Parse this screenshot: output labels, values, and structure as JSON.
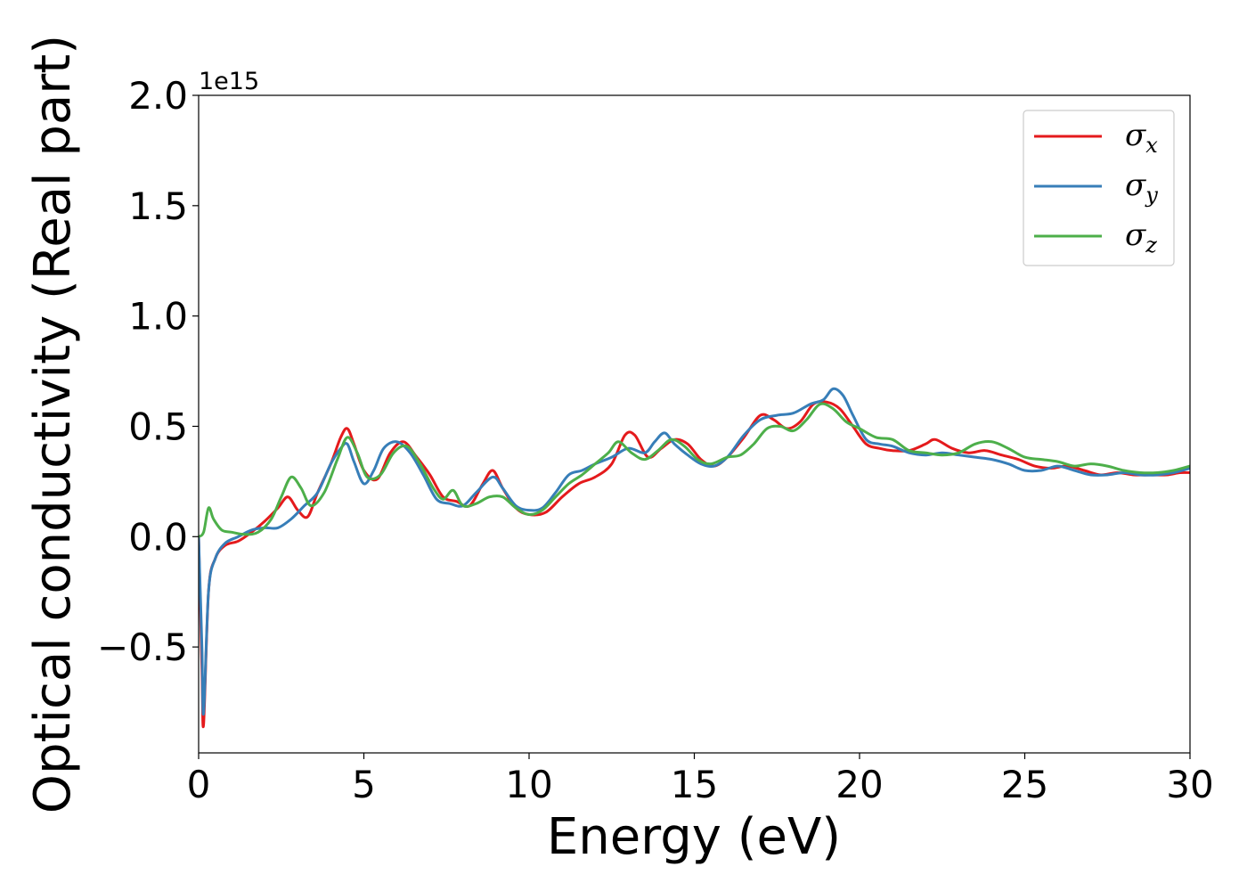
{
  "chart_data": {
    "type": "line",
    "xlabel": "Energy (eV)",
    "ylabel": "Optical conductivity (Real part)",
    "y_offset_label": "1e15",
    "xlim": [
      0,
      30
    ],
    "ylim": [
      -0.98,
      2.0
    ],
    "x_ticks": [
      0,
      5,
      10,
      15,
      20,
      25,
      30
    ],
    "x_tick_labels": [
      "0",
      "5",
      "10",
      "15",
      "20",
      "25",
      "30"
    ],
    "y_ticks": [
      -0.5,
      0.0,
      0.5,
      1.0,
      1.5,
      2.0
    ],
    "y_tick_labels": [
      "−0.5",
      "0.0",
      "0.5",
      "1.0",
      "1.5",
      "2.0"
    ],
    "grid": false,
    "legend_position": "top-right",
    "series": [
      {
        "name": "σ",
        "subscript": "x",
        "color": "#e41a1c",
        "x": [
          0,
          0.1,
          0.15,
          0.3,
          0.5,
          0.8,
          1.2,
          1.6,
          2.0,
          2.4,
          2.7,
          3.0,
          3.3,
          3.6,
          4.0,
          4.3,
          4.5,
          4.7,
          5.0,
          5.4,
          5.8,
          6.2,
          6.6,
          7.0,
          7.4,
          7.8,
          8.2,
          8.6,
          8.9,
          9.2,
          9.6,
          10.0,
          10.5,
          11.0,
          11.5,
          12.0,
          12.5,
          12.9,
          13.2,
          13.6,
          14.0,
          14.4,
          14.8,
          15.2,
          15.6,
          16.0,
          16.5,
          17.0,
          17.4,
          17.8,
          18.2,
          18.6,
          19.0,
          19.4,
          19.8,
          20.2,
          20.6,
          21.0,
          21.5,
          22.0,
          22.3,
          22.8,
          23.3,
          23.8,
          24.3,
          24.8,
          25.3,
          25.8,
          26.3,
          26.8,
          27.3,
          27.8,
          28.3,
          28.8,
          29.3,
          29.7,
          30.0
        ],
        "y": [
          0.0,
          -0.6,
          -0.85,
          -0.25,
          -0.1,
          -0.04,
          -0.02,
          0.02,
          0.07,
          0.13,
          0.18,
          0.12,
          0.09,
          0.2,
          0.33,
          0.45,
          0.49,
          0.42,
          0.3,
          0.26,
          0.38,
          0.43,
          0.36,
          0.28,
          0.18,
          0.16,
          0.14,
          0.24,
          0.3,
          0.22,
          0.13,
          0.1,
          0.11,
          0.18,
          0.24,
          0.27,
          0.33,
          0.46,
          0.46,
          0.36,
          0.4,
          0.44,
          0.42,
          0.35,
          0.32,
          0.36,
          0.45,
          0.55,
          0.53,
          0.49,
          0.52,
          0.6,
          0.61,
          0.58,
          0.5,
          0.42,
          0.4,
          0.39,
          0.39,
          0.42,
          0.44,
          0.4,
          0.38,
          0.39,
          0.37,
          0.35,
          0.32,
          0.31,
          0.32,
          0.3,
          0.28,
          0.29,
          0.28,
          0.28,
          0.28,
          0.29,
          0.29
        ]
      },
      {
        "name": "σ",
        "subscript": "y",
        "color": "#377eb8",
        "x": [
          0,
          0.1,
          0.15,
          0.3,
          0.5,
          0.8,
          1.2,
          1.6,
          2.0,
          2.4,
          2.8,
          3.2,
          3.6,
          4.0,
          4.3,
          4.5,
          4.7,
          5.0,
          5.3,
          5.6,
          6.0,
          6.4,
          6.8,
          7.2,
          7.6,
          8.0,
          8.4,
          8.9,
          9.2,
          9.6,
          10.0,
          10.4,
          10.8,
          11.2,
          11.6,
          12.0,
          12.5,
          13.0,
          13.5,
          13.8,
          14.1,
          14.4,
          14.8,
          15.2,
          15.6,
          16.0,
          16.5,
          17.0,
          17.5,
          18.0,
          18.5,
          18.9,
          19.2,
          19.5,
          19.8,
          20.2,
          20.6,
          21.0,
          21.5,
          22.0,
          22.5,
          23.0,
          23.5,
          24.0,
          24.5,
          25.0,
          25.5,
          26.0,
          26.5,
          27.0,
          27.5,
          28.0,
          28.5,
          29.0,
          29.5,
          30.0
        ],
        "y": [
          0.0,
          -0.5,
          -0.8,
          -0.25,
          -0.1,
          -0.03,
          0.0,
          0.03,
          0.04,
          0.04,
          0.08,
          0.14,
          0.2,
          0.33,
          0.4,
          0.42,
          0.34,
          0.24,
          0.3,
          0.4,
          0.43,
          0.38,
          0.28,
          0.17,
          0.15,
          0.14,
          0.2,
          0.27,
          0.22,
          0.14,
          0.12,
          0.13,
          0.2,
          0.28,
          0.3,
          0.33,
          0.36,
          0.4,
          0.38,
          0.43,
          0.47,
          0.42,
          0.37,
          0.33,
          0.32,
          0.36,
          0.46,
          0.53,
          0.55,
          0.56,
          0.6,
          0.62,
          0.67,
          0.64,
          0.55,
          0.44,
          0.42,
          0.41,
          0.38,
          0.37,
          0.38,
          0.37,
          0.36,
          0.35,
          0.33,
          0.3,
          0.3,
          0.32,
          0.3,
          0.28,
          0.28,
          0.29,
          0.28,
          0.28,
          0.29,
          0.31
        ]
      },
      {
        "name": "σ",
        "subscript": "z",
        "color": "#4daf4a",
        "x": [
          0,
          0.15,
          0.3,
          0.45,
          0.7,
          1.0,
          1.4,
          1.8,
          2.2,
          2.5,
          2.8,
          3.1,
          3.4,
          3.8,
          4.2,
          4.5,
          4.8,
          5.1,
          5.5,
          5.9,
          6.3,
          6.7,
          7.1,
          7.4,
          7.7,
          8.0,
          8.4,
          8.8,
          9.2,
          9.6,
          10.0,
          10.4,
          10.8,
          11.2,
          11.6,
          12.0,
          12.4,
          12.7,
          13.1,
          13.5,
          13.9,
          14.3,
          14.7,
          15.1,
          15.5,
          16.0,
          16.4,
          16.8,
          17.2,
          17.6,
          18.0,
          18.4,
          18.8,
          19.2,
          19.6,
          20.0,
          20.5,
          21.0,
          21.5,
          22.0,
          22.5,
          23.0,
          23.5,
          24.0,
          24.5,
          25.0,
          25.5,
          26.0,
          26.5,
          27.0,
          27.5,
          28.0,
          28.5,
          29.0,
          29.5,
          30.0
        ],
        "y": [
          0.0,
          0.02,
          0.13,
          0.08,
          0.03,
          0.02,
          0.01,
          0.02,
          0.08,
          0.18,
          0.27,
          0.22,
          0.14,
          0.2,
          0.35,
          0.45,
          0.38,
          0.27,
          0.28,
          0.38,
          0.41,
          0.33,
          0.22,
          0.17,
          0.21,
          0.14,
          0.15,
          0.18,
          0.18,
          0.13,
          0.1,
          0.12,
          0.18,
          0.24,
          0.28,
          0.33,
          0.38,
          0.43,
          0.38,
          0.35,
          0.39,
          0.44,
          0.41,
          0.35,
          0.33,
          0.36,
          0.37,
          0.42,
          0.49,
          0.5,
          0.48,
          0.53,
          0.6,
          0.58,
          0.52,
          0.49,
          0.45,
          0.44,
          0.39,
          0.38,
          0.37,
          0.38,
          0.42,
          0.43,
          0.4,
          0.36,
          0.35,
          0.34,
          0.32,
          0.33,
          0.32,
          0.3,
          0.29,
          0.29,
          0.3,
          0.32
        ]
      }
    ]
  }
}
